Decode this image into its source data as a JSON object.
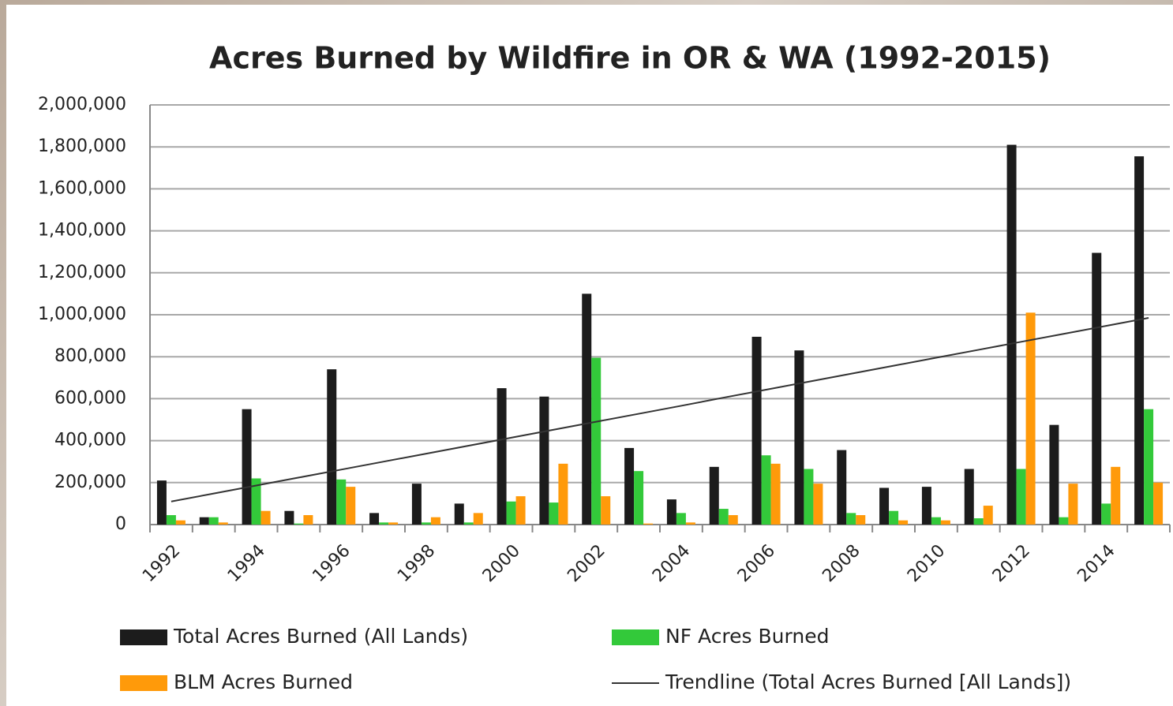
{
  "chart_data": {
    "type": "bar",
    "title": "Acres Burned by Wildfire in OR & WA (1992-2015)",
    "categories": [
      "1992",
      null,
      "1994",
      null,
      "1996",
      null,
      "1998",
      null,
      "2000",
      null,
      "2002",
      null,
      "2004",
      null,
      "2006",
      null,
      "2008",
      null,
      "2010",
      null,
      "2012",
      null,
      "2014",
      null
    ],
    "series": [
      {
        "name": "Total Acres Burned (All Lands)",
        "color": "#1c1c1c",
        "values": [
          210000,
          35000,
          550000,
          65000,
          740000,
          55000,
          195000,
          100000,
          650000,
          610000,
          1100000,
          365000,
          120000,
          275000,
          895000,
          830000,
          355000,
          175000,
          180000,
          265000,
          1810000,
          475000,
          1295000,
          1755000
        ]
      },
      {
        "name": "NF Acres Burned",
        "color": "#33c93a",
        "values": [
          45000,
          35000,
          220000,
          5000,
          215000,
          10000,
          10000,
          10000,
          110000,
          105000,
          795000,
          255000,
          55000,
          75000,
          330000,
          265000,
          55000,
          65000,
          35000,
          30000,
          265000,
          35000,
          100000,
          550000
        ]
      },
      {
        "name": "BLM Acres Burned",
        "color": "#ff9a0a",
        "values": [
          20000,
          10000,
          65000,
          45000,
          180000,
          10000,
          35000,
          55000,
          135000,
          290000,
          135000,
          5000,
          10000,
          45000,
          290000,
          195000,
          45000,
          20000,
          20000,
          90000,
          1010000,
          195000,
          275000,
          200000
        ]
      },
      {
        "name": "Trendline (Total Acres Burned [All Lands])",
        "color": "#333333",
        "type": "line",
        "values": [
          110000,
          148000,
          186000,
          224000,
          262000,
          300000,
          338000,
          376000,
          414000,
          452000,
          490000,
          528000,
          566000,
          605000,
          643000,
          681000,
          719000,
          757000,
          795000,
          833000,
          871000,
          909000,
          947000,
          985000
        ]
      }
    ],
    "ylim": [
      0,
      2000000
    ],
    "yticks": [
      0,
      {
        "value": 200000,
        "label": "200,000"
      },
      {
        "value": 400000,
        "label": "400,000"
      },
      {
        "value": 600000,
        "label": "600,000"
      },
      {
        "value": 800000,
        "label": "800,000"
      },
      {
        "value": 1000000,
        "label": "1,000,000"
      },
      {
        "value": 1200000,
        "label": "1,200,000"
      },
      {
        "value": 1400000,
        "label": "1,400,000"
      },
      {
        "value": 1600000,
        "label": "1,600,000"
      },
      {
        "value": 1800000,
        "label": "1,800,000"
      },
      {
        "value": 2000000,
        "label": "2,000,000"
      }
    ],
    "grid": true
  }
}
